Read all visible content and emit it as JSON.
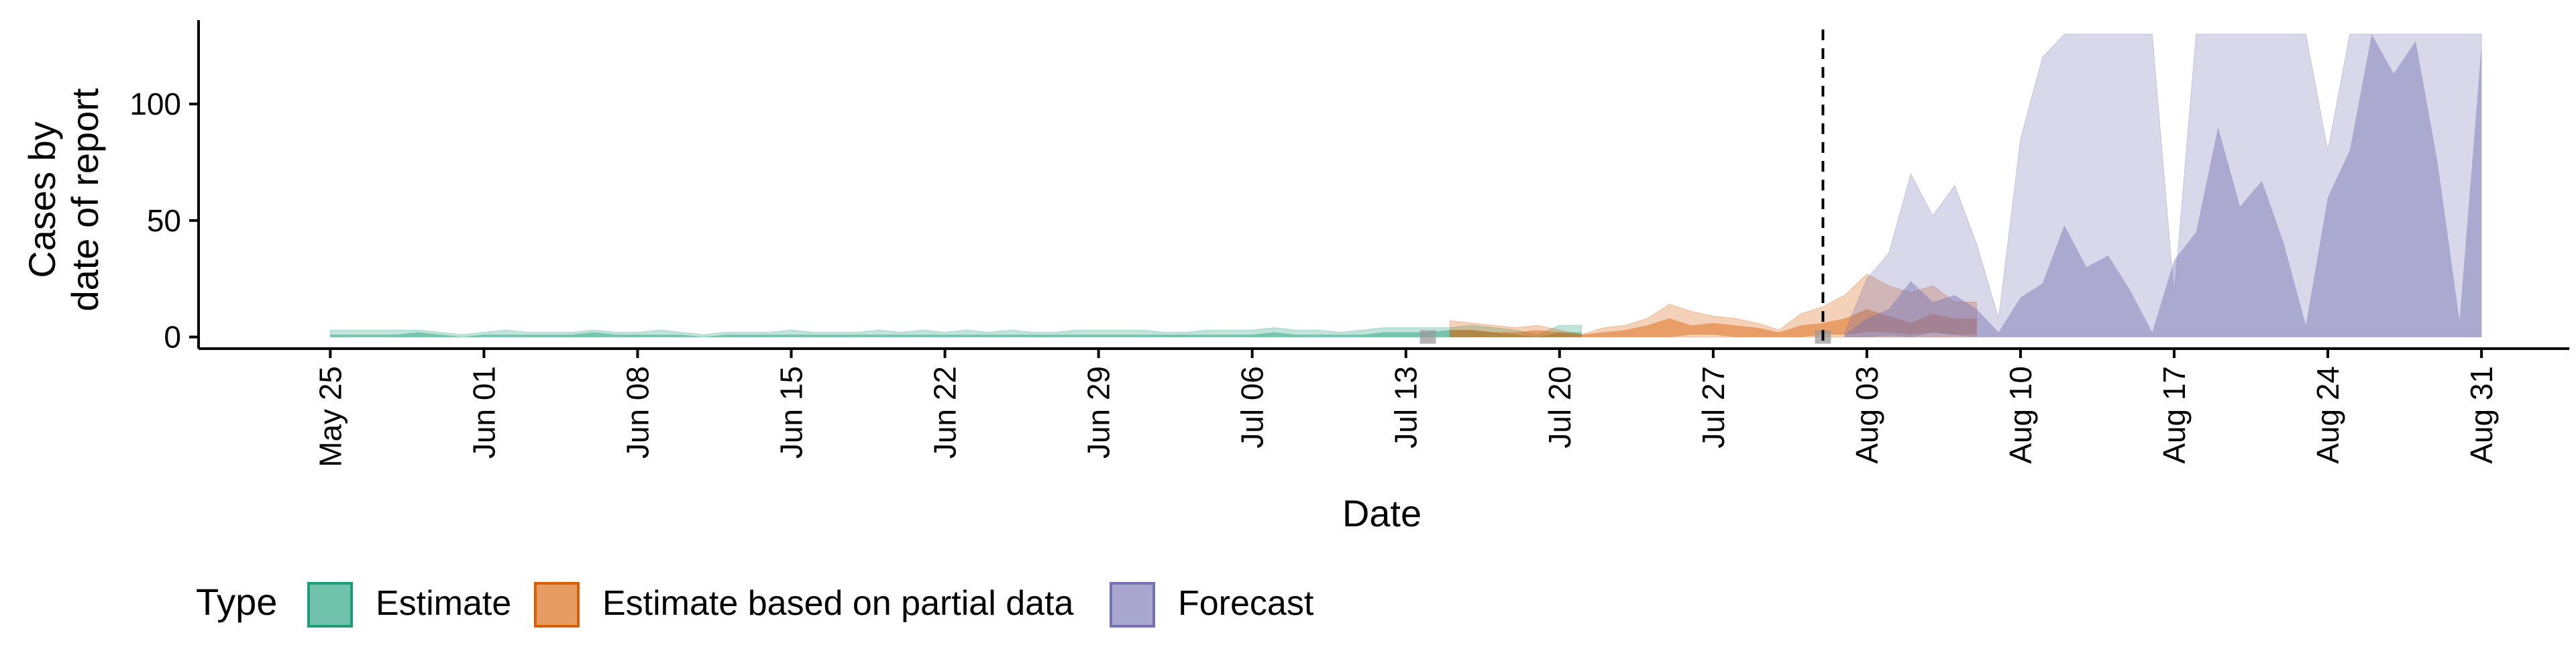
{
  "chart_data": {
    "type": "area",
    "title": "",
    "xlabel": "Date",
    "ylabel_lines": [
      "Cases by",
      "date of report"
    ],
    "x_type": "date",
    "xlim": [
      "2020-05-19",
      "2020-09-04"
    ],
    "ylim": [
      -5,
      136
    ],
    "y_ticks": [
      0,
      50,
      100
    ],
    "x_tick_dates": [
      "2020-05-25",
      "2020-06-01",
      "2020-06-08",
      "2020-06-15",
      "2020-06-22",
      "2020-06-29",
      "2020-07-06",
      "2020-07-13",
      "2020-07-20",
      "2020-07-27",
      "2020-08-03",
      "2020-08-10",
      "2020-08-17",
      "2020-08-24",
      "2020-08-31"
    ],
    "x_tick_labels": [
      "May 25",
      "Jun 01",
      "Jun 08",
      "Jun 15",
      "Jun 22",
      "Jun 29",
      "Jul 06",
      "Jul 13",
      "Jul 20",
      "Jul 27",
      "Aug 03",
      "Aug 10",
      "Aug 17",
      "Aug 24",
      "Aug 31"
    ],
    "vline_date": "2020-08-01",
    "grid": false,
    "legend": {
      "position": "bottom-left",
      "title": "Type",
      "items": [
        {
          "label": "Estimate",
          "color": "#1b9e77"
        },
        {
          "label": "Estimate based on partial data",
          "color": "#d95f02"
        },
        {
          "label": "Forecast",
          "color": "#7570b3"
        }
      ]
    },
    "series": [
      {
        "name": "Estimate",
        "color": "#1b9e77",
        "x_start": "2020-05-25",
        "outer_upper": [
          3,
          3,
          3,
          3,
          3,
          2,
          1,
          2,
          3,
          2,
          2,
          2,
          3,
          2,
          2,
          3,
          2,
          1,
          2,
          2,
          2,
          3,
          2,
          2,
          2,
          3,
          2,
          3,
          2,
          3,
          2,
          3,
          2,
          2,
          3,
          3,
          3,
          3,
          2,
          2,
          3,
          3,
          3,
          4,
          3,
          3,
          2,
          3,
          4,
          4,
          4,
          4,
          5,
          4,
          3,
          1,
          5,
          5
        ],
        "outer_lower": [
          0,
          0,
          0,
          0,
          0,
          0,
          0,
          0,
          0,
          0,
          0,
          0,
          0,
          0,
          0,
          0,
          0,
          0,
          0,
          0,
          0,
          0,
          0,
          0,
          0,
          0,
          0,
          0,
          0,
          0,
          0,
          0,
          0,
          0,
          0,
          0,
          0,
          0,
          0,
          0,
          0,
          0,
          0,
          0,
          0,
          0,
          0,
          0,
          0,
          0,
          0,
          0,
          0,
          0,
          0,
          0,
          0,
          0
        ],
        "inner_upper": [
          1,
          1,
          1,
          1,
          2,
          1,
          0,
          1,
          1,
          1,
          1,
          1,
          2,
          1,
          1,
          1,
          1,
          0,
          1,
          1,
          1,
          1,
          1,
          1,
          1,
          1,
          1,
          1,
          1,
          1,
          1,
          1,
          1,
          1,
          1,
          1,
          1,
          1,
          1,
          1,
          1,
          1,
          1,
          2,
          1,
          1,
          1,
          1,
          2,
          2,
          2,
          3,
          3,
          2,
          1,
          0,
          2,
          2
        ],
        "inner_lower": [
          0,
          0,
          0,
          0,
          0,
          0,
          0,
          0,
          0,
          0,
          0,
          0,
          0,
          0,
          0,
          0,
          0,
          0,
          0,
          0,
          0,
          0,
          0,
          0,
          0,
          0,
          0,
          0,
          0,
          0,
          0,
          0,
          0,
          0,
          0,
          0,
          0,
          0,
          0,
          0,
          0,
          0,
          0,
          0,
          0,
          0,
          0,
          0,
          0,
          0,
          0,
          0,
          0,
          0,
          0,
          0,
          0,
          0
        ]
      },
      {
        "name": "Estimate based on partial data",
        "color": "#d95f02",
        "x_start": "2020-07-15",
        "outer_upper": [
          7,
          6,
          5,
          4,
          5,
          3,
          1,
          4,
          5,
          8,
          14,
          11,
          9,
          8,
          6,
          3,
          10,
          13,
          18,
          27,
          22,
          19,
          22,
          15,
          15
        ],
        "outer_lower": [
          0,
          0,
          0,
          0,
          0,
          0,
          0,
          0,
          0,
          0,
          0,
          0,
          0,
          0,
          0,
          0,
          0,
          0,
          0,
          0,
          0,
          0,
          0,
          0,
          0
        ],
        "inner_upper": [
          3,
          3,
          2,
          2,
          3,
          2,
          1,
          2,
          3,
          5,
          8,
          5,
          6,
          5,
          4,
          2,
          5,
          6,
          8,
          12,
          9,
          6,
          10,
          8,
          8
        ],
        "inner_lower": [
          0,
          0,
          0,
          0,
          0,
          0,
          0,
          0,
          0,
          0,
          0,
          1,
          1,
          0,
          0,
          0,
          0,
          1,
          1,
          2,
          2,
          1,
          2,
          1,
          1
        ]
      },
      {
        "name": "Forecast",
        "color": "#7570b3",
        "x_start": "2020-08-02",
        "outer_upper": [
          2,
          25,
          36,
          70,
          52,
          65,
          40,
          8,
          85,
          120,
          130,
          130,
          130,
          130,
          130,
          18,
          130,
          130,
          130,
          130,
          130,
          130,
          80,
          130,
          130,
          130,
          130,
          130,
          130,
          130
        ],
        "outer_lower": [
          0,
          0,
          1,
          0,
          2,
          1,
          0,
          0,
          0,
          0,
          0,
          0,
          0,
          0,
          0,
          0,
          0,
          0,
          0,
          0,
          0,
          0,
          0,
          0,
          0,
          0,
          0,
          0,
          0,
          0
        ],
        "inner_upper": [
          1,
          8,
          12,
          24,
          15,
          18,
          12,
          2,
          17,
          23,
          48,
          30,
          35,
          20,
          2,
          33,
          45,
          90,
          56,
          67,
          40,
          5,
          60,
          80,
          130,
          113,
          127,
          75,
          7,
          125
        ],
        "inner_lower": [
          0,
          0,
          0,
          0,
          0,
          0,
          0,
          0,
          0,
          0,
          0,
          0,
          0,
          0,
          0,
          0,
          0,
          0,
          0,
          0,
          0,
          0,
          0,
          0,
          0,
          0,
          0,
          0,
          0,
          0
        ]
      }
    ],
    "overlap_marker": {
      "color": "#999999",
      "dates": [
        "2020-07-14",
        "2020-08-01"
      ]
    }
  }
}
